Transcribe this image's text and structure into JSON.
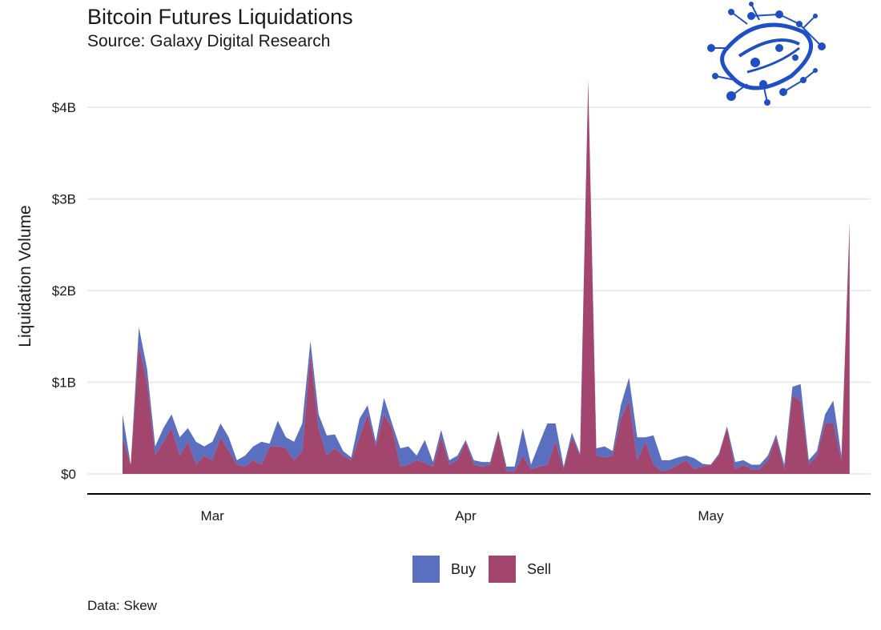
{
  "title": "Bitcoin Futures Liquidations",
  "subtitle": "Source: Galaxy Digital Research",
  "caption": "Data: Skew",
  "colors": {
    "buy": "#5b6fc0",
    "sell": "#a3466e",
    "grid": "#e6e6e6",
    "axis": "#000000",
    "logo": "#1f4fc4"
  },
  "chart_data": {
    "type": "area",
    "stacked": true,
    "title": "Bitcoin Futures Liquidations",
    "xlabel": "",
    "ylabel": "Liquidation Volume",
    "ylim": [
      0,
      4.3
    ],
    "y_unit": "billions USD",
    "yticks": [
      0,
      1,
      2,
      3,
      4
    ],
    "ytick_labels": [
      "$0",
      "$1B",
      "$2B",
      "$3B",
      "$4B"
    ],
    "xticks": [
      {
        "day": 14,
        "label": "Mar"
      },
      {
        "day": 45,
        "label": "Apr"
      },
      {
        "day": 75,
        "label": "May"
      }
    ],
    "x_range_days": [
      3,
      91
    ],
    "legend": [
      "Buy",
      "Sell"
    ],
    "legend_position": "bottom",
    "series": [
      {
        "name": "Sell",
        "values": [
          0.4,
          0.1,
          1.4,
          1.0,
          0.2,
          0.35,
          0.5,
          0.2,
          0.35,
          0.1,
          0.2,
          0.15,
          0.4,
          0.25,
          0.1,
          0.08,
          0.15,
          0.1,
          0.3,
          0.3,
          0.28,
          0.15,
          0.25,
          1.3,
          0.5,
          0.2,
          0.28,
          0.2,
          0.15,
          0.4,
          0.65,
          0.3,
          0.65,
          0.5,
          0.08,
          0.1,
          0.15,
          0.12,
          0.08,
          0.4,
          0.1,
          0.15,
          0.35,
          0.1,
          0.08,
          0.1,
          0.45,
          0.03,
          0.03,
          0.2,
          0.05,
          0.08,
          0.1,
          0.35,
          0.05,
          0.4,
          0.2,
          4.3,
          0.2,
          0.18,
          0.2,
          0.6,
          0.8,
          0.15,
          0.35,
          0.1,
          0.03,
          0.05,
          0.1,
          0.15,
          0.05,
          0.08,
          0.1,
          0.2,
          0.5,
          0.05,
          0.1,
          0.05,
          0.05,
          0.15,
          0.4,
          0.05,
          0.85,
          0.8,
          0.1,
          0.2,
          0.55,
          0.55,
          0.15,
          2.75
        ]
      },
      {
        "name": "Buy",
        "values": [
          0.25,
          0.0,
          0.2,
          0.15,
          0.1,
          0.15,
          0.15,
          0.2,
          0.15,
          0.25,
          0.1,
          0.2,
          0.15,
          0.15,
          0.05,
          0.12,
          0.15,
          0.25,
          0.03,
          0.28,
          0.12,
          0.2,
          0.3,
          0.15,
          0.15,
          0.22,
          0.15,
          0.05,
          0.03,
          0.2,
          0.1,
          0.05,
          0.18,
          0.05,
          0.2,
          0.2,
          0.05,
          0.25,
          0.05,
          0.08,
          0.05,
          0.05,
          0.02,
          0.05,
          0.05,
          0.03,
          0.02,
          0.05,
          0.05,
          0.3,
          0.05,
          0.25,
          0.45,
          0.2,
          0.03,
          0.05,
          0.02,
          0.0,
          0.08,
          0.12,
          0.05,
          0.15,
          0.25,
          0.25,
          0.05,
          0.32,
          0.12,
          0.1,
          0.08,
          0.05,
          0.12,
          0.03,
          0.0,
          0.02,
          0.02,
          0.08,
          0.05,
          0.05,
          0.05,
          0.05,
          0.03,
          0.05,
          0.1,
          0.18,
          0.05,
          0.05,
          0.1,
          0.25,
          0.05,
          0.0
        ]
      }
    ]
  }
}
